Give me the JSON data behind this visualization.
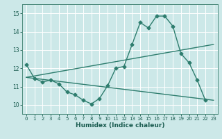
{
  "xlabel": "Humidex (Indice chaleur)",
  "bg_color": "#cce8e8",
  "grid_color": "#ffffff",
  "line_color": "#2e7d6e",
  "xlim": [
    -0.5,
    23.5
  ],
  "ylim": [
    9.5,
    15.5
  ],
  "xticks": [
    0,
    1,
    2,
    3,
    4,
    5,
    6,
    7,
    8,
    9,
    10,
    11,
    12,
    13,
    14,
    15,
    16,
    17,
    18,
    19,
    20,
    21,
    22,
    23
  ],
  "yticks": [
    10,
    11,
    12,
    13,
    14,
    15
  ],
  "line1_x": [
    0,
    1,
    2,
    3,
    4,
    5,
    6,
    7,
    8,
    9,
    10,
    11,
    12,
    13,
    14,
    15,
    16,
    17,
    18,
    19,
    20,
    21,
    22
  ],
  "line1_y": [
    12.2,
    11.45,
    11.25,
    11.35,
    11.15,
    10.7,
    10.55,
    10.25,
    10.05,
    10.35,
    11.05,
    12.0,
    12.1,
    13.3,
    14.5,
    14.2,
    14.85,
    14.85,
    14.3,
    12.8,
    12.3,
    11.35,
    10.25
  ],
  "line2_x": [
    0,
    23
  ],
  "line2_y": [
    11.5,
    13.3
  ],
  "line3_x": [
    0,
    23
  ],
  "line3_y": [
    11.5,
    10.25
  ],
  "marker": "D",
  "markersize": 2.5,
  "linewidth": 1.0
}
